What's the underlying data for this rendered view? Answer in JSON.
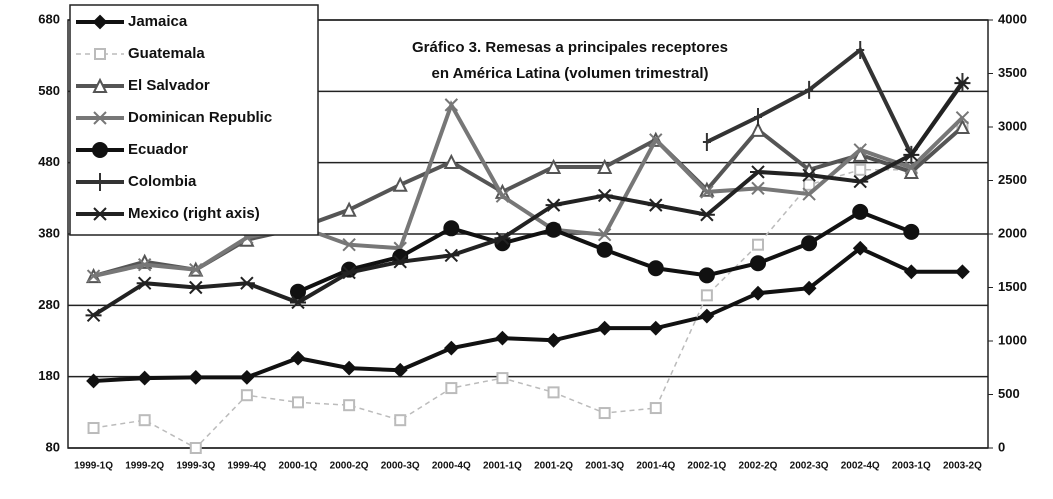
{
  "chart_data": {
    "type": "line",
    "title": [
      "Gráfico 3. Remesas a principales receptores",
      "en América Latina (volumen trimestral)"
    ],
    "categories": [
      "1999-1Q",
      "1999-2Q",
      "1999-3Q",
      "1999-4Q",
      "2000-1Q",
      "2000-2Q",
      "2000-3Q",
      "2000-4Q",
      "2001-1Q",
      "2001-2Q",
      "2001-3Q",
      "2001-4Q",
      "2002-1Q",
      "2002-2Q",
      "2002-3Q",
      "2002-4Q",
      "2003-1Q",
      "2003-2Q"
    ],
    "ylim": [
      80,
      680
    ],
    "yticks": [
      80,
      180,
      280,
      380,
      480,
      580,
      680
    ],
    "y2lim": [
      0,
      4000
    ],
    "y2ticks": [
      0,
      500,
      1000,
      1500,
      2000,
      2500,
      3000,
      3500,
      4000
    ],
    "grid": true,
    "legend": "upper left",
    "series": [
      {
        "name": "Jamaica",
        "color": "#111111",
        "marker": "diamond",
        "values": [
          174,
          178,
          179,
          179,
          206,
          192,
          189,
          220,
          234,
          231,
          248,
          248,
          265,
          297,
          304,
          360,
          327,
          327
        ]
      },
      {
        "name": "Guatemala",
        "color": "#bbbbbb",
        "marker": "square",
        "dashed": true,
        "values": [
          108,
          119,
          80,
          154,
          144,
          140,
          119,
          164,
          178,
          158,
          129,
          136,
          294,
          365,
          449,
          470,
          470,
          530
        ]
      },
      {
        "name": "El Salvador",
        "color": "#555555",
        "marker": "triangle",
        "values": [
          321,
          341,
          330,
          372,
          388,
          414,
          449,
          481,
          439,
          474,
          474,
          512,
          442,
          526,
          470,
          491,
          467,
          530
        ]
      },
      {
        "name": "Dominican Republic",
        "color": "#777777",
        "marker": "x",
        "values": [
          321,
          337,
          330,
          375,
          391,
          365,
          360,
          561,
          433,
          386,
          379,
          512,
          439,
          444,
          436,
          498,
          473,
          543
        ]
      },
      {
        "name": "Ecuador",
        "color": "#111111",
        "marker": "circle",
        "values": [
          null,
          null,
          null,
          null,
          299,
          330,
          348,
          388,
          367,
          386,
          358,
          332,
          322,
          339,
          367,
          411,
          383,
          null
        ]
      },
      {
        "name": "Colombia",
        "color": "#333333",
        "marker": "plus",
        "values": [
          null,
          null,
          null,
          null,
          null,
          null,
          null,
          null,
          null,
          null,
          null,
          null,
          509,
          544,
          582,
          638,
          491,
          593
        ]
      },
      {
        "name": "Mexico (right axis)",
        "color": "#222222",
        "marker": "star",
        "axis": "y2",
        "values": [
          1240,
          1540,
          1500,
          1540,
          1360,
          1640,
          1740,
          1800,
          1960,
          2270,
          2360,
          2270,
          2180,
          2580,
          2550,
          2490,
          2740,
          3410
        ]
      }
    ]
  }
}
